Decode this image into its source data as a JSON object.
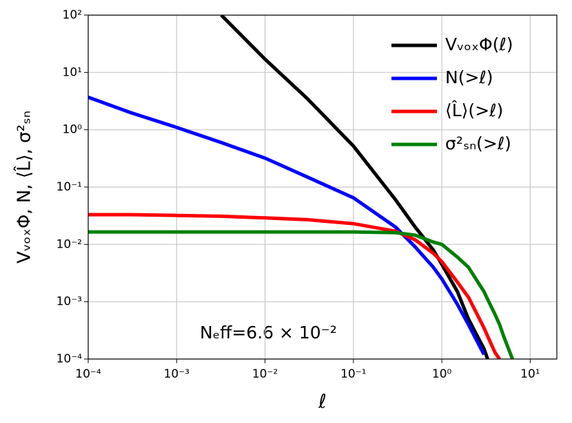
{
  "chart_data": {
    "type": "line",
    "x_label": "ℓ",
    "y_label": "VᵥₒₓΦ, N, ⟨L̂⟩, σ²ₛₙ",
    "annotation": "Nₑff=6.6 × 10⁻²",
    "x_log": true,
    "y_log": true,
    "grid": true,
    "legend": "upper right",
    "xlim": [
      0.0001,
      20
    ],
    "ylim": [
      0.0001,
      100
    ],
    "xticks": [
      {
        "value": 0.0001,
        "label": "10⁻⁴"
      },
      {
        "value": 0.001,
        "label": "10⁻³"
      },
      {
        "value": 0.01,
        "label": "10⁻²"
      },
      {
        "value": 0.1,
        "label": "10⁻¹"
      },
      {
        "value": 1,
        "label": "10⁰"
      },
      {
        "value": 10,
        "label": "10¹"
      }
    ],
    "yticks": [
      {
        "value": 0.0001,
        "label": "10⁻⁴"
      },
      {
        "value": 0.001,
        "label": "10⁻³"
      },
      {
        "value": 0.01,
        "label": "10⁻²"
      },
      {
        "value": 0.1,
        "label": "10⁻¹"
      },
      {
        "value": 1,
        "label": "10⁰"
      },
      {
        "value": 10,
        "label": "10¹"
      },
      {
        "value": 100,
        "label": "10²"
      }
    ],
    "x": [
      0.0001,
      0.0003,
      0.001,
      0.0032,
      0.01,
      0.03,
      0.1,
      0.3,
      0.5,
      0.8,
      1,
      1.5,
      2,
      3,
      3.3,
      4,
      4.5,
      5,
      6.3
    ],
    "series": [
      {
        "name": "VᵥₒₓΦ(ℓ)",
        "color": "#000000",
        "values": [
          null,
          null,
          null,
          100,
          17,
          3.5,
          0.52,
          0.06,
          0.02,
          0.008,
          0.0045,
          0.0015,
          0.0005,
          0.00015,
          0.0001,
          null,
          null,
          null,
          null
        ]
      },
      {
        "name": "N(>ℓ)",
        "color": "#0000ff",
        "values": [
          3.7,
          2,
          1.1,
          0.6,
          0.32,
          0.15,
          0.065,
          0.02,
          0.009,
          0.004,
          0.0025,
          0.0009,
          0.0004,
          0.00012,
          null,
          null,
          null,
          null,
          null
        ]
      },
      {
        "name": "⟨L̂⟩(>ℓ)",
        "color": "#ff0000",
        "values": [
          0.033,
          0.033,
          0.032,
          0.031,
          0.029,
          0.027,
          0.023,
          0.017,
          0.012,
          0.007,
          0.005,
          0.0022,
          0.0012,
          0.00035,
          0.00025,
          0.00013,
          0.0001,
          null,
          null
        ]
      },
      {
        "name": "σ²ₛₙ(>ℓ)",
        "color": "#008000",
        "values": [
          0.0165,
          0.0165,
          0.0165,
          0.0165,
          0.0165,
          0.0165,
          0.0165,
          0.016,
          0.0145,
          0.011,
          0.01,
          0.006,
          0.004,
          0.0015,
          0.0011,
          0.0006,
          0.0004,
          0.00025,
          0.0001
        ]
      }
    ]
  }
}
